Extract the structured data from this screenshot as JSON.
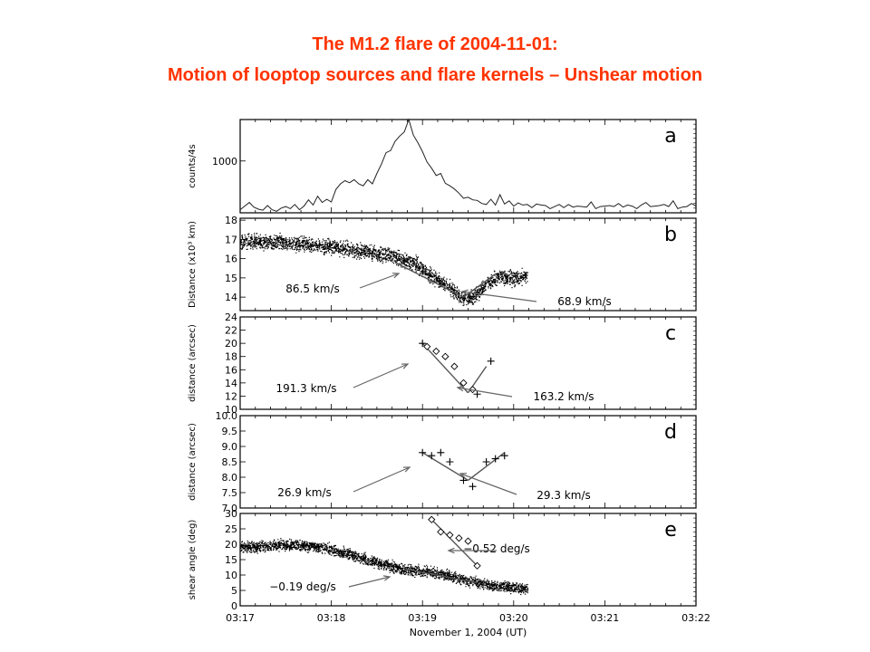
{
  "title_line1": "The M1.2 flare of 2004-11-01:",
  "title_line2": "Motion of looptop sources and flare kernels – Unshear motion",
  "chart_data": [
    {
      "panel": "a",
      "type": "line",
      "ylabel": "counts/4s",
      "yticks": [
        1000
      ],
      "ylim": [
        0,
        1800
      ],
      "series": [
        {
          "x": [
            0,
            0.05,
            0.1,
            0.15,
            0.2,
            0.25,
            0.3,
            0.35,
            0.4,
            0.45,
            0.5,
            0.55,
            0.6,
            0.65,
            0.7,
            0.75,
            0.8,
            0.85,
            0.9,
            0.95,
            1.0,
            1.05,
            1.1,
            1.15,
            1.2,
            1.25,
            1.3,
            1.35,
            1.4,
            1.45,
            1.5,
            1.55,
            1.6,
            1.65,
            1.7,
            1.75,
            1.8,
            1.85,
            1.9,
            1.95,
            2.0,
            2.05,
            2.1,
            2.15,
            2.2,
            2.25,
            2.3,
            2.35,
            2.4,
            2.45,
            2.5,
            2.55,
            2.6,
            2.65,
            2.7,
            2.75,
            2.8,
            2.85,
            2.9,
            2.95,
            3.0,
            3.05,
            3.1,
            3.15,
            3.2,
            3.25,
            3.3,
            3.35,
            3.4,
            3.45,
            3.5,
            3.55,
            3.6,
            3.65,
            3.7,
            3.75,
            3.8,
            3.85,
            3.9,
            3.95,
            4.0,
            4.05,
            4.1,
            4.15,
            4.2,
            4.25,
            4.3,
            4.35,
            4.4,
            4.45,
            4.5,
            4.55,
            4.6,
            4.65,
            4.7,
            4.75,
            4.8,
            4.85,
            4.9,
            4.95,
            5.0
          ],
          "y": [
            60,
            130,
            200,
            110,
            70,
            50,
            140,
            60,
            30,
            90,
            120,
            80,
            160,
            60,
            130,
            250,
            150,
            320,
            200,
            260,
            210,
            450,
            560,
            620,
            580,
            640,
            560,
            520,
            640,
            560,
            760,
            940,
            1160,
            1200,
            1380,
            1480,
            1560,
            1800,
            1500,
            1350,
            1180,
            980,
            860,
            720,
            760,
            570,
            520,
            460,
            380,
            280,
            300,
            250,
            240,
            180,
            160,
            260,
            150,
            350,
            170,
            230,
            130,
            190,
            150,
            160,
            100,
            170,
            150,
            140,
            80,
            120,
            160,
            100,
            160,
            110,
            130,
            120,
            110,
            210,
            80,
            120,
            130,
            140,
            120,
            180,
            110,
            150,
            130,
            80,
            150,
            200,
            120,
            130,
            140,
            160,
            120,
            230,
            80,
            110,
            120,
            180,
            130
          ]
        }
      ],
      "annotation": "a"
    },
    {
      "panel": "b",
      "type": "scatter",
      "ylabel": "Distance (x10³ km)",
      "yticks": [
        14,
        15,
        16,
        17,
        18
      ],
      "ylim": [
        13.3,
        18.1
      ],
      "scatter_band": {
        "x": [
          0,
          0.4,
          0.8,
          1.2,
          1.6,
          1.9,
          2.1,
          2.3,
          2.45,
          2.55,
          2.7,
          2.85,
          3.0,
          3.15
        ],
        "y": [
          16.9,
          16.9,
          16.7,
          16.5,
          16.2,
          15.8,
          15.1,
          14.5,
          13.9,
          14.0,
          14.7,
          15.1,
          15.0,
          15.2
        ]
      },
      "fit_lines": [
        {
          "x": [
            1.7,
            2.45
          ],
          "y": [
            15.8,
            14.0
          ]
        },
        {
          "x": [
            2.45,
            2.8
          ],
          "y": [
            14.0,
            15.2
          ]
        }
      ],
      "annotations": [
        "86.5 km/s",
        "68.9 km/s",
        "b"
      ]
    },
    {
      "panel": "c",
      "type": "scatter",
      "ylabel": "distance (arcsec)",
      "yticks": [
        10,
        12,
        14,
        16,
        18,
        20,
        22,
        24
      ],
      "ylim": [
        10,
        24
      ],
      "plus_points": {
        "x": [
          2.0,
          2.6,
          2.75
        ],
        "y": [
          20,
          12.3,
          17.3
        ]
      },
      "diamond_points": {
        "x": [
          2.05,
          2.15,
          2.25,
          2.35,
          2.45,
          2.55
        ],
        "y": [
          19.5,
          18.8,
          18.0,
          16.5,
          14,
          13
        ]
      },
      "fit_lines": [
        {
          "x": [
            2.0,
            2.5
          ],
          "y": [
            20,
            12.5
          ]
        },
        {
          "x": [
            2.5,
            2.7
          ],
          "y": [
            12.5,
            16.5
          ]
        }
      ],
      "annotations": [
        "191.3 km/s",
        "163.2 km/s",
        "c"
      ]
    },
    {
      "panel": "d",
      "type": "scatter",
      "ylabel": "distance (arcsec)",
      "yticks": [
        7.0,
        7.5,
        8.0,
        8.5,
        9.0,
        9.5,
        10.0
      ],
      "ylim": [
        7.0,
        10.0
      ],
      "plus_points": {
        "x": [
          2.0,
          2.1,
          2.2,
          2.3,
          2.45,
          2.55,
          2.7,
          2.8,
          2.9
        ],
        "y": [
          8.8,
          8.7,
          8.8,
          8.5,
          7.9,
          7.7,
          8.5,
          8.6,
          8.7
        ]
      },
      "fit_lines": [
        {
          "x": [
            2.0,
            2.5
          ],
          "y": [
            8.8,
            7.9
          ]
        },
        {
          "x": [
            2.5,
            2.9
          ],
          "y": [
            7.9,
            8.8
          ]
        }
      ],
      "annotations": [
        "26.9 km/s",
        "29.3 km/s",
        "d"
      ]
    },
    {
      "panel": "e",
      "type": "scatter",
      "ylabel": "shear angle (deg)",
      "yticks": [
        0,
        5,
        10,
        15,
        20,
        25,
        30
      ],
      "ylim": [
        0,
        30
      ],
      "scatter_band": {
        "x": [
          0,
          0.3,
          0.6,
          0.9,
          1.2,
          1.5,
          1.8,
          2.1,
          2.4,
          2.7,
          3.0,
          3.15
        ],
        "y": [
          19,
          19.5,
          20,
          19,
          17,
          14,
          12,
          11,
          9,
          7,
          6,
          5.5
        ]
      },
      "diamond_points": {
        "x": [
          2.1,
          2.2,
          2.3,
          2.4,
          2.5,
          2.6
        ],
        "y": [
          28,
          24,
          23,
          22,
          21,
          13
        ]
      },
      "fit_lines": [
        {
          "x": [
            2.1,
            2.6
          ],
          "y": [
            28,
            13
          ]
        },
        {
          "x": [
            1.8,
            2.6
          ],
          "y": [
            12,
            7.5
          ]
        }
      ],
      "annotations": [
        "−0.52 deg/s",
        "−0.19 deg/s",
        "e"
      ]
    }
  ],
  "xaxis": {
    "tick_labels": [
      "03:17",
      "03:18",
      "03:19",
      "03:20",
      "03:21",
      "03:22"
    ],
    "xlabel": "November 1, 2004 (UT)",
    "xlim": [
      0,
      5
    ]
  }
}
